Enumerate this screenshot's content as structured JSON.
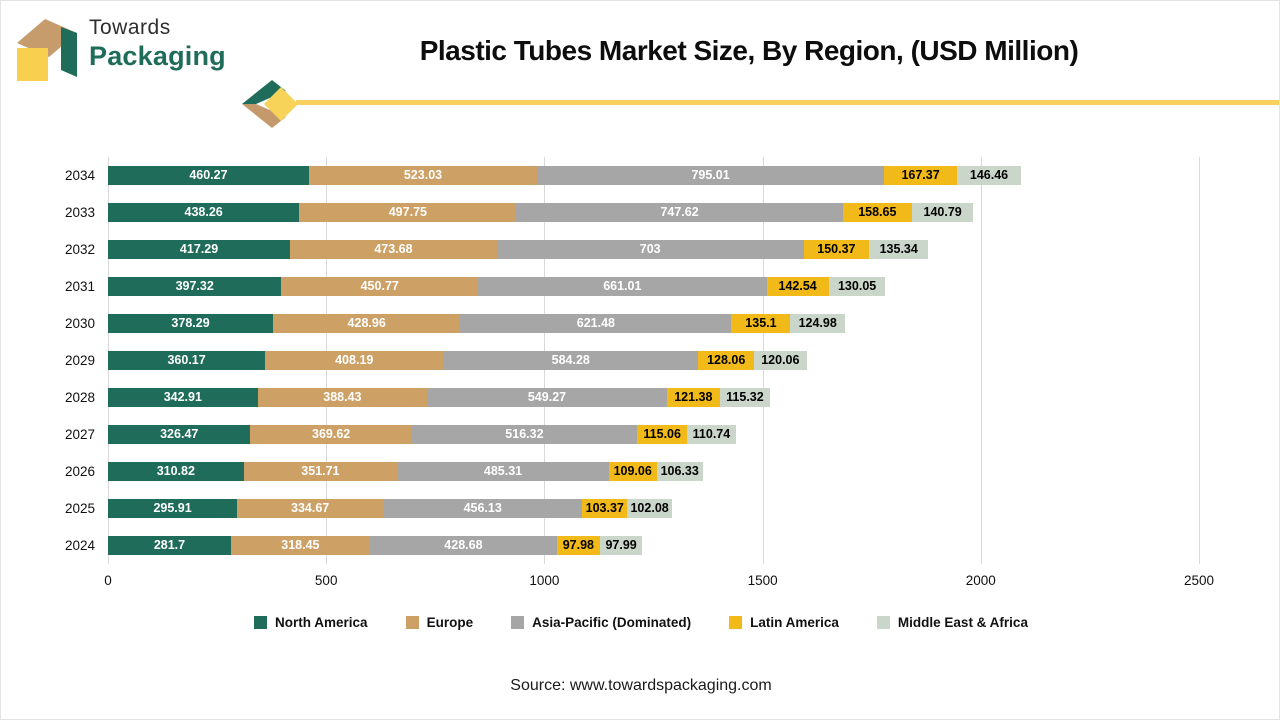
{
  "header": {
    "brand_top": "Towards",
    "brand_bottom": "Packaging",
    "title": "Plastic Tubes Market Size, By Region, (USD Million)"
  },
  "colors": {
    "north_america": "#1E6C59",
    "europe": "#CDA065",
    "asia_pacific": "#A6A6A6",
    "latin_america": "#F2BA19",
    "middle_east_africa": "#CBD6CB",
    "accent_line": "#F6D15D",
    "gridline": "#D9D9D9"
  },
  "chart_data": {
    "type": "bar",
    "orientation": "horizontal-stacked",
    "title": "Plastic Tubes Market Size, By Region, (USD Million)",
    "xlabel": "",
    "ylabel": "",
    "xlim": [
      0,
      2500
    ],
    "xticks": [
      0,
      500,
      1000,
      1500,
      2000,
      2500
    ],
    "grid": "vertical",
    "legend_position": "bottom",
    "categories": [
      "2034",
      "2033",
      "2032",
      "2031",
      "2030",
      "2029",
      "2028",
      "2027",
      "2026",
      "2025",
      "2024"
    ],
    "series": [
      {
        "name": "North America",
        "color": "#1E6C59",
        "label_color": "#ffffff",
        "values": [
          460.27,
          438.26,
          417.29,
          397.32,
          378.29,
          360.17,
          342.91,
          326.47,
          310.82,
          295.91,
          281.7
        ]
      },
      {
        "name": "Europe",
        "color": "#CDA065",
        "label_color": "#ffffff",
        "values": [
          523.03,
          497.75,
          473.68,
          450.77,
          428.96,
          408.19,
          388.43,
          369.62,
          351.71,
          334.67,
          318.45
        ]
      },
      {
        "name": "Asia-Pacific (Dominated)",
        "color": "#A6A6A6",
        "label_color": "#ffffff",
        "values": [
          795.01,
          747.62,
          703,
          661.01,
          621.48,
          584.28,
          549.27,
          516.32,
          485.31,
          456.13,
          428.68
        ]
      },
      {
        "name": "Latin America",
        "color": "#F2BA19",
        "label_color": "#000000",
        "values": [
          167.37,
          158.65,
          150.37,
          142.54,
          135.1,
          128.06,
          121.38,
          115.06,
          109.06,
          103.37,
          97.98
        ]
      },
      {
        "name": "Middle East & Africa",
        "color": "#CBD6CB",
        "label_color": "#000000",
        "values": [
          146.46,
          140.79,
          135.34,
          130.05,
          124.98,
          120.06,
          115.32,
          110.74,
          106.33,
          102.08,
          97.99
        ]
      }
    ]
  },
  "source": {
    "label": "Source: www.towardspackaging.com"
  }
}
